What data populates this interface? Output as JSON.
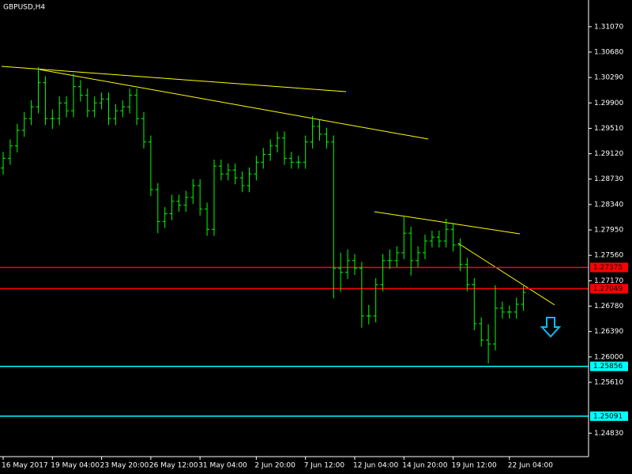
{
  "chart_data": {
    "type": "ohlc",
    "title": "GBPUSD,H4",
    "color": "#00ff00",
    "categories": [
      "16 May 2017",
      null,
      null,
      null,
      null,
      null,
      null,
      "19 May 04:00",
      null,
      null,
      null,
      null,
      null,
      null,
      "23 May 20:00",
      null,
      null,
      null,
      null,
      null,
      null,
      "26 May 12:00",
      null,
      null,
      null,
      null,
      null,
      null,
      "31 May 04:00",
      null,
      null,
      null,
      null,
      null,
      null,
      null,
      "2 Jun 20:00",
      null,
      null,
      null,
      null,
      null,
      null,
      "7 Jun 12:00",
      null,
      null,
      null,
      null,
      null,
      null,
      "12 Jun 04:00",
      null,
      null,
      null,
      null,
      null,
      null,
      "14 Jun 20:00",
      null,
      null,
      null,
      null,
      null,
      null,
      "19 Jun 12:00",
      null,
      null,
      null,
      null,
      null,
      null,
      null,
      "22 Jun 04:00",
      null,
      null
    ],
    "open": [
      1.289,
      1.2905,
      1.2924,
      1.2948,
      1.2966,
      1.2984,
      1.3021,
      1.2966,
      1.2966,
      1.299,
      1.2978,
      1.3015,
      1.3002,
      1.2978,
      1.299,
      1.2996,
      1.2966,
      1.2978,
      1.2984,
      1.3002,
      1.2966,
      1.293,
      1.2857,
      1.2808,
      1.282,
      1.2839,
      1.2833,
      1.2845,
      1.2863,
      1.2827,
      1.2796,
      1.2893,
      1.2881,
      1.2887,
      1.2875,
      1.2863,
      1.2881,
      1.2899,
      1.2911,
      1.2924,
      1.2936,
      1.2905,
      1.2899,
      1.2899,
      1.293,
      1.2954,
      1.2942,
      1.293,
      1.2736,
      1.273,
      1.2748,
      1.2736,
      1.2663,
      1.2663,
      1.2711,
      1.2748,
      1.2748,
      1.276,
      1.279,
      1.2748,
      1.276,
      1.2778,
      1.2784,
      1.2778,
      1.2796,
      1.2772,
      1.2742,
      1.2711,
      1.2651,
      1.2626,
      1.262,
      1.2675,
      1.2669,
      1.2669,
      1.2681
    ],
    "high": [
      1.2915,
      1.2934,
      1.2958,
      1.2976,
      1.2994,
      1.3045,
      1.3031,
      1.298,
      1.3,
      1.3,
      1.3035,
      1.3025,
      1.3012,
      1.3,
      1.3006,
      1.3006,
      1.2988,
      1.2994,
      1.3012,
      1.3012,
      1.2976,
      1.294,
      1.2867,
      1.283,
      1.2849,
      1.2849,
      1.2855,
      1.2873,
      1.2873,
      1.2837,
      1.2903,
      1.2903,
      1.2897,
      1.2897,
      1.2885,
      1.2891,
      1.2909,
      1.2921,
      1.2934,
      1.2946,
      1.2946,
      1.2915,
      1.2909,
      1.294,
      1.297,
      1.2964,
      1.2952,
      1.294,
      1.276,
      1.2765,
      1.2758,
      1.2746,
      1.268,
      1.2721,
      1.2758,
      1.2765,
      1.277,
      1.2815,
      1.28,
      1.277,
      1.2788,
      1.2794,
      1.2794,
      1.2812,
      1.2806,
      1.2782,
      1.2752,
      1.2721,
      1.2661,
      1.265,
      1.271,
      1.2685,
      1.2679,
      1.2691,
      1.2709
    ],
    "low": [
      1.288,
      1.2895,
      1.2914,
      1.2938,
      1.2956,
      1.2974,
      1.2956,
      1.295,
      1.2956,
      1.2968,
      1.2968,
      1.2992,
      1.2968,
      1.2968,
      1.298,
      1.2956,
      1.2956,
      1.2968,
      1.2974,
      1.2956,
      1.292,
      1.2847,
      1.279,
      1.2798,
      1.281,
      1.2823,
      1.2823,
      1.2835,
      1.2817,
      1.2786,
      1.2786,
      1.2871,
      1.2871,
      1.2865,
      1.2853,
      1.2853,
      1.2871,
      1.2889,
      1.2901,
      1.2914,
      1.2895,
      1.2889,
      1.2889,
      1.2889,
      1.292,
      1.2932,
      1.292,
      1.269,
      1.27,
      1.272,
      1.2726,
      1.2645,
      1.265,
      1.2653,
      1.2701,
      1.2735,
      1.2738,
      1.275,
      1.2725,
      1.2738,
      1.275,
      1.2768,
      1.2768,
      1.2768,
      1.2762,
      1.2732,
      1.2701,
      1.2641,
      1.2616,
      1.259,
      1.261,
      1.2659,
      1.2659,
      1.2659,
      1.2671
    ],
    "close": [
      1.2905,
      1.2924,
      1.2948,
      1.2966,
      1.2984,
      1.3021,
      1.2966,
      1.2966,
      1.299,
      1.2978,
      1.3015,
      1.3002,
      1.2978,
      1.299,
      1.2996,
      1.2966,
      1.2978,
      1.2984,
      1.3002,
      1.2966,
      1.293,
      1.2857,
      1.2808,
      1.282,
      1.2839,
      1.2833,
      1.2845,
      1.2863,
      1.2827,
      1.2796,
      1.2893,
      1.2881,
      1.2887,
      1.2875,
      1.2863,
      1.2881,
      1.2899,
      1.2911,
      1.2924,
      1.2936,
      1.2905,
      1.2899,
      1.2899,
      1.293,
      1.2954,
      1.2942,
      1.293,
      1.2736,
      1.273,
      1.2748,
      1.2736,
      1.2663,
      1.2663,
      1.2711,
      1.2748,
      1.2748,
      1.276,
      1.279,
      1.2748,
      1.276,
      1.2778,
      1.2784,
      1.2778,
      1.2796,
      1.2772,
      1.2742,
      1.2711,
      1.2651,
      1.2626,
      1.262,
      1.2675,
      1.2669,
      1.2669,
      1.2681,
      1.2699
    ],
    "ylim": [
      1.2447,
      1.3148
    ],
    "yticks": [
      {
        "value": 1.3107,
        "label": "1.31070"
      },
      {
        "value": 1.3068,
        "label": "1.30680"
      },
      {
        "value": 1.3029,
        "label": "1.30290"
      },
      {
        "value": 1.299,
        "label": "1.29900"
      },
      {
        "value": 1.2951,
        "label": "1.29510"
      },
      {
        "value": 1.2912,
        "label": "1.29120"
      },
      {
        "value": 1.2873,
        "label": "1.28730"
      },
      {
        "value": 1.2834,
        "label": "1.28340"
      },
      {
        "value": 1.2795,
        "label": "1.27950"
      },
      {
        "value": 1.2756,
        "label": "1.27560"
      },
      {
        "value": 1.2717,
        "label": "1.27170"
      },
      {
        "value": 1.2678,
        "label": "1.26780"
      },
      {
        "value": 1.2639,
        "label": "1.26390"
      },
      {
        "value": 1.26,
        "label": "1.26000"
      },
      {
        "value": 1.2561,
        "label": "1.25610"
      },
      {
        "value": 1.2483,
        "label": "1.24830"
      }
    ],
    "levels": [
      {
        "value": 1.27375,
        "color": "#ff0000"
      },
      {
        "value": 1.27049,
        "color": "#ff0000"
      },
      {
        "value": 1.25856,
        "color": "#00ffff"
      },
      {
        "value": 1.25091,
        "color": "#00ffff"
      }
    ]
  }
}
